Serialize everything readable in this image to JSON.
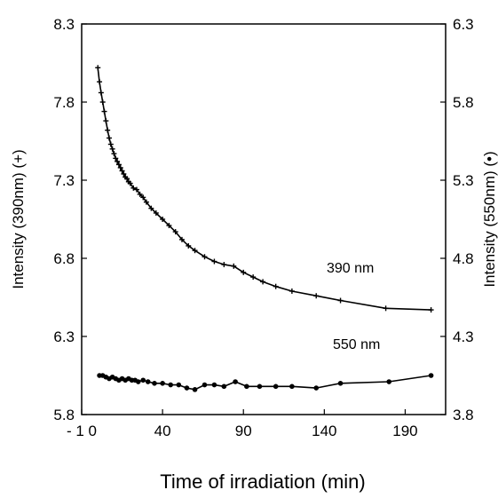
{
  "chart_data": {
    "type": "line",
    "xlabel": "Time of irradiation (min)",
    "ylabel_left": "Intensity (390nm) (+)",
    "ylabel_right": "Intensity (550nm) (•)",
    "xlim": [
      -10,
      215
    ],
    "ylim_left": [
      5.8,
      8.3
    ],
    "ylim_right": [
      3.8,
      6.3
    ],
    "x_ticks": [
      -10,
      40,
      90,
      140,
      190
    ],
    "x_tick_labels": [
      "- 1 0",
      "40",
      "90",
      "140",
      "190"
    ],
    "y_left_ticks": [
      5.8,
      6.3,
      6.8,
      7.3,
      7.8,
      8.3
    ],
    "y_left_tick_labels": [
      "5.8",
      "6.3",
      "6.8",
      "7.3",
      "7.8",
      "8.3"
    ],
    "y_right_ticks": [
      3.8,
      4.3,
      4.8,
      5.3,
      5.8,
      6.3
    ],
    "y_right_tick_labels": [
      "3.8",
      "4.3",
      "4.8",
      "5.3",
      "5.8",
      "6.3"
    ],
    "grid": false,
    "series": [
      {
        "name": "390 nm",
        "marker": "+",
        "axis": "left",
        "x": [
          0,
          1,
          2,
          3,
          4,
          5,
          6,
          7,
          8,
          9,
          10,
          11,
          12,
          13,
          14,
          15,
          16,
          17,
          18,
          19,
          20,
          22,
          24,
          26,
          28,
          30,
          33,
          36,
          40,
          44,
          48,
          52,
          56,
          60,
          66,
          72,
          78,
          84,
          90,
          96,
          102,
          110,
          120,
          135,
          150,
          178,
          206
        ],
        "y": [
          8.02,
          7.93,
          7.86,
          7.8,
          7.74,
          7.68,
          7.62,
          7.57,
          7.53,
          7.5,
          7.47,
          7.44,
          7.42,
          7.4,
          7.38,
          7.36,
          7.34,
          7.32,
          7.31,
          7.29,
          7.28,
          7.25,
          7.24,
          7.21,
          7.19,
          7.16,
          7.12,
          7.09,
          7.05,
          7.01,
          6.97,
          6.92,
          6.88,
          6.85,
          6.81,
          6.78,
          6.76,
          6.75,
          6.71,
          6.68,
          6.65,
          6.62,
          6.59,
          6.56,
          6.53,
          6.48,
          6.47
        ]
      },
      {
        "name": "550 nm",
        "marker": "•",
        "axis": "right",
        "x": [
          1,
          3,
          5,
          7,
          9,
          11,
          13,
          15,
          17,
          19,
          21,
          23,
          25,
          28,
          31,
          35,
          40,
          45,
          50,
          55,
          60,
          66,
          72,
          78,
          85,
          92,
          100,
          110,
          120,
          135,
          150,
          180,
          206
        ],
        "y": [
          4.05,
          4.05,
          4.04,
          4.03,
          4.04,
          4.03,
          4.02,
          4.03,
          4.02,
          4.03,
          4.02,
          4.02,
          4.01,
          4.02,
          4.01,
          4.0,
          4.0,
          3.99,
          3.99,
          3.97,
          3.96,
          3.99,
          3.99,
          3.98,
          4.01,
          3.98,
          3.98,
          3.98,
          3.98,
          3.97,
          4.0,
          4.01,
          4.05
        ]
      }
    ]
  }
}
